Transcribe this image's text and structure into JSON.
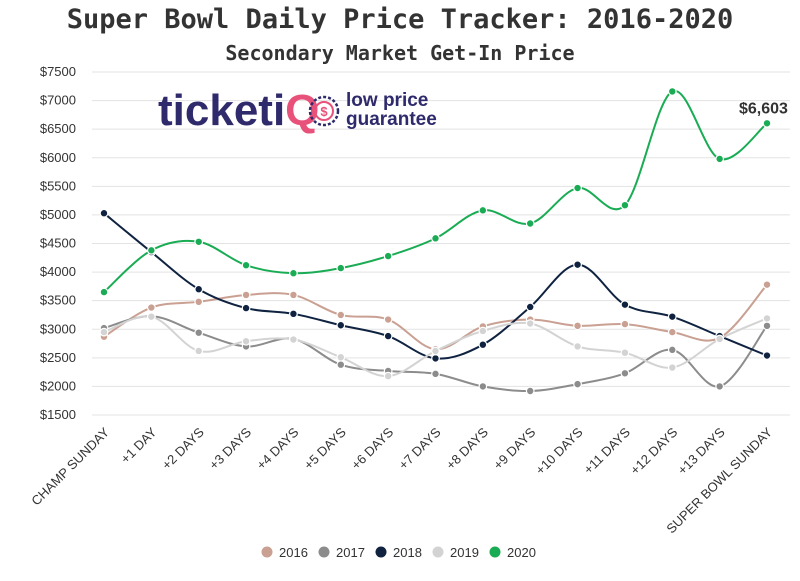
{
  "chart_data": {
    "type": "line",
    "title": "Super Bowl Daily Price Tracker: 2016-2020",
    "subtitle": "Secondary Market Get-In Price",
    "categories": [
      "CHAMP SUNDAY",
      "+1 DAY",
      "+2 DAYS",
      "+3 DAYS",
      "+4 DAYS",
      "+5 DAYS",
      "+6 DAYS",
      "+7 DAYS",
      "+8 DAYS",
      "+9 DAYS",
      "+10 DAYS",
      "+11 DAYS",
      "+12 DAYS",
      "+13 DAYS",
      "SUPER BOWL SUNDAY"
    ],
    "y_ticks": [
      "$1500",
      "$2000",
      "$2500",
      "$3000",
      "$3500",
      "$4000",
      "$4500",
      "$5000",
      "$5500",
      "$6000",
      "$6500",
      "$7000",
      "$7500"
    ],
    "ylim": [
      1500,
      7500
    ],
    "grid": true,
    "legend_position": "bottom",
    "series": [
      {
        "name": "2016",
        "color": "#c9a092",
        "values": [
          2870,
          3380,
          3480,
          3600,
          3600,
          3250,
          3170,
          2650,
          3050,
          3170,
          3060,
          3090,
          2950,
          2850,
          3780
        ]
      },
      {
        "name": "2017",
        "color": "#8c8c8c",
        "values": [
          3020,
          3230,
          2940,
          2700,
          2830,
          2380,
          2270,
          2220,
          2000,
          1920,
          2040,
          2230,
          2640,
          2000,
          3060
        ]
      },
      {
        "name": "2018",
        "color": "#0f2341",
        "values": [
          5030,
          4350,
          3700,
          3370,
          3270,
          3070,
          2880,
          2490,
          2730,
          3390,
          4130,
          3430,
          3220,
          2880,
          2540
        ]
      },
      {
        "name": "2019",
        "color": "#d3d3d3",
        "values": [
          2950,
          3220,
          2620,
          2790,
          2820,
          2510,
          2180,
          2620,
          2970,
          3100,
          2700,
          2590,
          2330,
          2830,
          3190
        ]
      },
      {
        "name": "2020",
        "color": "#1aac54",
        "values": [
          3650,
          4380,
          4530,
          4120,
          3980,
          4070,
          4280,
          4590,
          5080,
          4850,
          5470,
          5170,
          7160,
          5980,
          6603
        ]
      }
    ],
    "annotations": [
      {
        "series": "2020",
        "index": 14,
        "text": "$6,603"
      }
    ]
  },
  "logo": {
    "brand_a": "ticketi",
    "brand_b": "Q",
    "tag_line1": "low price",
    "tag_line2": "guarantee",
    "badge_symbol": "$",
    "colors": {
      "navy": "#2e2a6b",
      "accent": "#e8527a"
    }
  }
}
